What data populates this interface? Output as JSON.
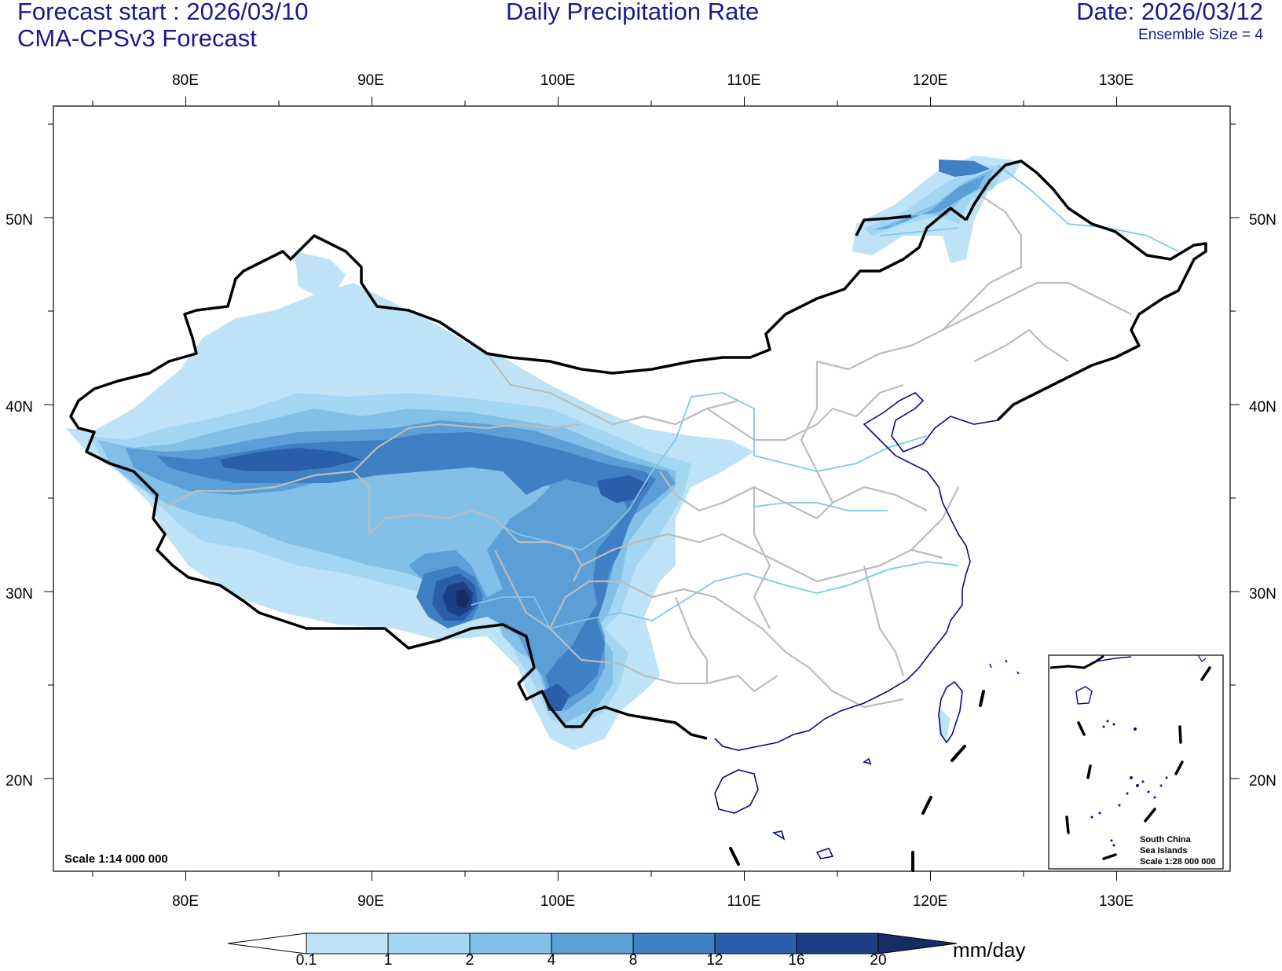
{
  "header": {
    "forecast_start": "Forecast start : 2026/03/10",
    "model": "CMA-CPSv3 Forecast",
    "title": "Daily Precipitation Rate",
    "date": "Date: 2026/03/12",
    "ensemble": "Ensemble Size = 4"
  },
  "axes": {
    "lon_labels": [
      "80E",
      "90E",
      "100E",
      "110E",
      "120E",
      "130E"
    ],
    "lat_labels": [
      "50N",
      "40N",
      "30N",
      "20N"
    ]
  },
  "map": {
    "scale_note": "Scale 1:14 000 000",
    "inset_line1": "South China",
    "inset_line2": "Sea Islands",
    "inset_scale": "Scale 1:28 000 000"
  },
  "colorbar": {
    "unit": "mm/day",
    "tick_labels": [
      "0.1",
      "1",
      "2",
      "4",
      "8",
      "12",
      "16",
      "20"
    ],
    "colors": [
      "#ffffff",
      "#bfe3f6",
      "#a3d6f2",
      "#82c0e8",
      "#5b9fd6",
      "#3f7fc3",
      "#2a5ea8",
      "#1c3f87",
      "#172c66"
    ]
  },
  "colors": {
    "header_text": "#1a1a8c",
    "border": "#000000",
    "province": "#bcbcbc",
    "river": "#7fc8e6",
    "coast": "#0a0a8c"
  }
}
